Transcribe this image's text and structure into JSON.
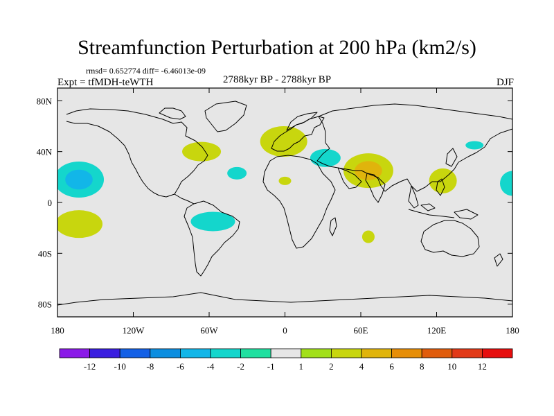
{
  "figure": {
    "title": "Streamfunction Perturbation at 200 hPa (km2/s)",
    "stats": "rmsd= 0.652774 diff= -6.46013e-09",
    "experiment": "Expt = tfMDH-teWTH",
    "period": "2788kyr BP - 2788kyr BP",
    "season": "DJF"
  },
  "axes": {
    "lat_ticks": [
      "80N",
      "40N",
      "0",
      "40S",
      "80S"
    ],
    "lon_ticks": [
      "180",
      "120W",
      "60W",
      "0",
      "60E",
      "120E",
      "180"
    ]
  },
  "colorbar": {
    "labels": [
      "-12",
      "-10",
      "-8",
      "-6",
      "-4",
      "-2",
      "-1",
      "1",
      "2",
      "4",
      "6",
      "8",
      "10",
      "12"
    ],
    "colors": [
      "#8b1ae8",
      "#3a1ee0",
      "#1360e6",
      "#0c8ee0",
      "#12b6e8",
      "#14d6cc",
      "#20e0a0",
      "#e6e6e6",
      "#a2e01a",
      "#c8d60e",
      "#e0b40c",
      "#e68e08",
      "#e05c0c",
      "#e23a18",
      "#e60e0e"
    ]
  },
  "chart_data": {
    "type": "heatmap",
    "title": "Streamfunction Perturbation at 200 hPa (km2/s)",
    "projection": "cylindrical equidistant",
    "lon_range": [
      -180,
      180
    ],
    "lat_range": [
      -90,
      90
    ],
    "anomalies": [
      {
        "region": "Central North Pacific",
        "lon": -163,
        "lat": 18,
        "level": "-2",
        "core_level": "-4"
      },
      {
        "region": "South Pacific",
        "lon": -163,
        "lat": -17,
        "level": "2"
      },
      {
        "region": "Western Atlantic",
        "lon": -66,
        "lat": 40,
        "level": "2"
      },
      {
        "region": "Central Atlantic",
        "lon": -38,
        "lat": 23,
        "level": "-2"
      },
      {
        "region": "South America east",
        "lon": -57,
        "lat": -15,
        "level": "-2"
      },
      {
        "region": "Western Europe",
        "lon": -1,
        "lat": 48,
        "level": "2"
      },
      {
        "region": "Eastern Mediterranean",
        "lon": 32,
        "lat": 35,
        "level": "-2"
      },
      {
        "region": "West Africa",
        "lon": 0,
        "lat": 17,
        "level": "2"
      },
      {
        "region": "Arabia / India",
        "lon": 66,
        "lat": 25,
        "level": "2",
        "core_level": "4"
      },
      {
        "region": "Southern Indian Ocean",
        "lon": 66,
        "lat": -27,
        "level": "2"
      },
      {
        "region": "Philippines",
        "lon": 125,
        "lat": 17,
        "level": "2"
      },
      {
        "region": "Kamchatka",
        "lon": 150,
        "lat": 45,
        "level": "-2"
      },
      {
        "region": "Date line North Pacific",
        "lon": 180,
        "lat": 15,
        "level": "-2"
      }
    ]
  }
}
